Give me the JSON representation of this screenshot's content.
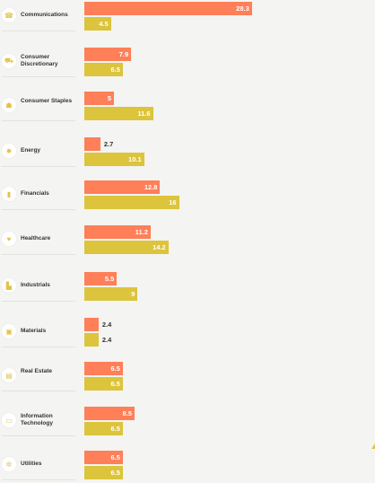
{
  "colors": {
    "series_a": "#ff7f59",
    "series_b": "#dcc43c",
    "icon": "#e3c24a"
  },
  "chart_data": {
    "type": "bar",
    "orientation": "horizontal",
    "categories": [
      "Communications",
      "Consumer Discretionary",
      "Consumer Staples",
      "Energy",
      "Financials",
      "Healthcare",
      "Industrials",
      "Materials",
      "Real Estate",
      "Information Technology",
      "Utilities"
    ],
    "icons": [
      "phone-icon",
      "cart-icon",
      "basket-icon",
      "bulb-icon",
      "bar-chart-icon",
      "heart-icon",
      "factory-icon",
      "box-icon",
      "building-icon",
      "laptop-icon",
      "gear-icon"
    ],
    "series": [
      {
        "values": [
          28.3,
          7.9,
          5,
          2.7,
          12.8,
          11.2,
          5.5,
          2.4,
          6.5,
          8.5,
          6.5
        ]
      },
      {
        "values": [
          4.5,
          6.5,
          11.6,
          10.1,
          16,
          14.2,
          9,
          2.4,
          6.5,
          6.5,
          6.5
        ]
      }
    ],
    "value_labels": [
      [
        "28.3",
        "7.9",
        "5",
        "2.7",
        "12.8",
        "11.2",
        "5.5",
        "2.4",
        "6.5",
        "8.5",
        "6.5"
      ],
      [
        "4.5",
        "6.5",
        "11.6",
        "10.1",
        "16",
        "14.2",
        "9",
        "2.4",
        "6.5",
        "6.5",
        "6.5"
      ]
    ]
  }
}
